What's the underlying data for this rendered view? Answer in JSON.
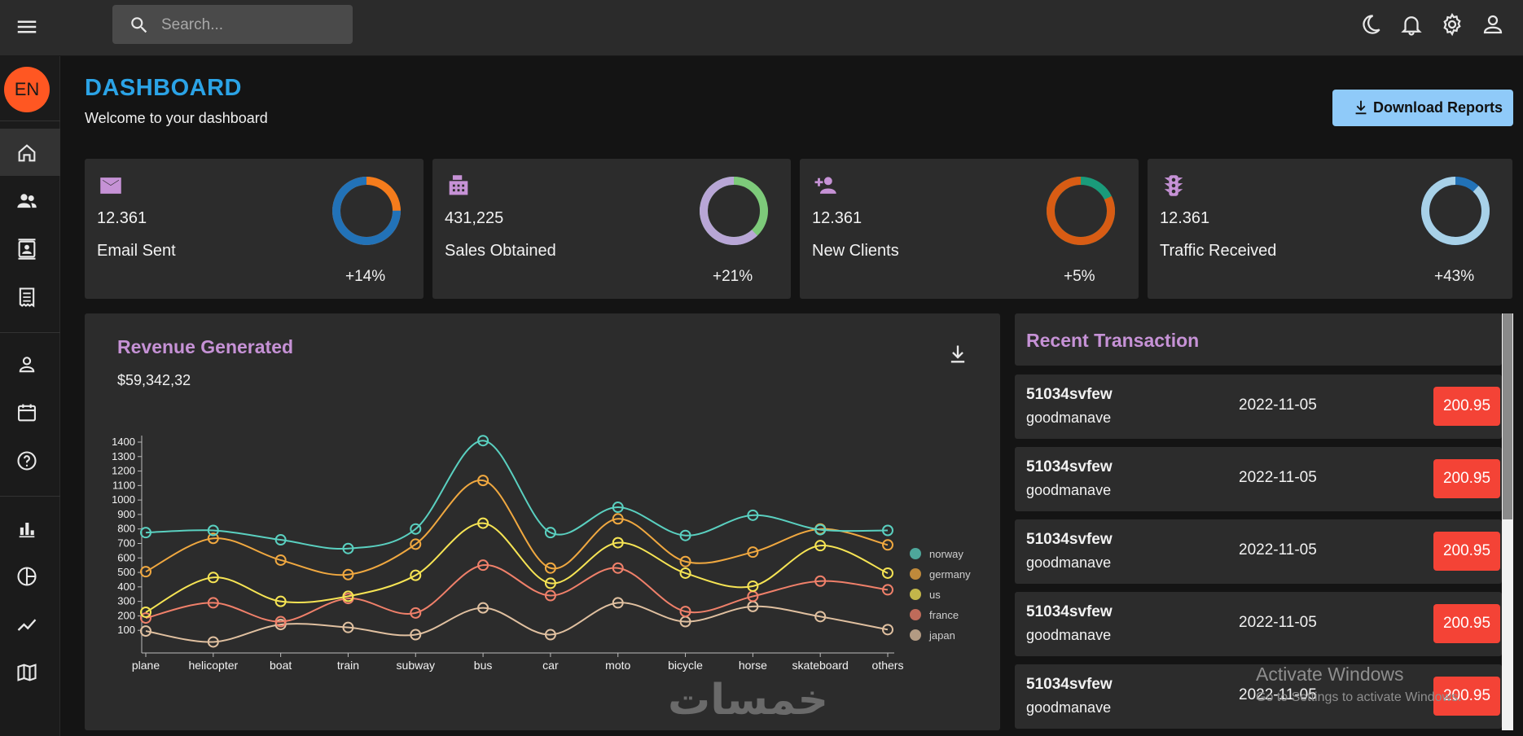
{
  "search": {
    "placeholder": "Search..."
  },
  "sidebar": {
    "lang_badge": "EN"
  },
  "header": {
    "title": "DASHBOARD",
    "subtitle": "Welcome to your dashboard",
    "download_label": "Download Reports"
  },
  "stats": [
    {
      "value": "12.361",
      "label": "Email Sent",
      "pct": "+14%",
      "progress": 0.75,
      "ring_main": "#2272b7",
      "ring_accent": "#f57c1c"
    },
    {
      "value": "431,225",
      "label": "Sales Obtained",
      "pct": "+21%",
      "progress": 0.62,
      "ring_main": "#b8a6d6",
      "ring_accent": "#7dca7a"
    },
    {
      "value": "12.361",
      "label": "New Clients",
      "pct": "+5%",
      "progress": 0.82,
      "ring_main": "#d85c14",
      "ring_accent": "#1a9b7a"
    },
    {
      "value": "12.361",
      "label": "Traffic Received",
      "pct": "+43%",
      "progress": 0.88,
      "ring_main": "#a8d1e8",
      "ring_accent": "#2272b7"
    }
  ],
  "revenue": {
    "title": "Revenue Generated",
    "amount": "$59,342,32"
  },
  "chart_data": {
    "type": "line",
    "title": "Revenue Generated",
    "categories": [
      "plane",
      "helicopter",
      "boat",
      "train",
      "subway",
      "bus",
      "car",
      "moto",
      "bicycle",
      "horse",
      "skateboard",
      "others"
    ],
    "ylim": [
      0,
      1400
    ],
    "yticks": [
      "100",
      "200",
      "300",
      "400",
      "500",
      "600",
      "700",
      "800",
      "900",
      "1000",
      "1100",
      "1200",
      "1300",
      "1400"
    ],
    "series": [
      {
        "name": "norway",
        "color": "#5ad0c0",
        "values": [
          775,
          790,
          725,
          665,
          800,
          1410,
          775,
          950,
          755,
          895,
          795,
          790
        ]
      },
      {
        "name": "germany",
        "color": "#f0a840",
        "values": [
          505,
          735,
          585,
          485,
          695,
          1135,
          530,
          870,
          575,
          640,
          800,
          690
        ]
      },
      {
        "name": "us",
        "color": "#f6e454",
        "values": [
          225,
          465,
          300,
          335,
          480,
          840,
          425,
          705,
          495,
          405,
          685,
          495
        ]
      },
      {
        "name": "france",
        "color": "#f0806a",
        "values": [
          185,
          290,
          160,
          320,
          220,
          550,
          340,
          530,
          230,
          335,
          440,
          380
        ]
      },
      {
        "name": "japan",
        "color": "#e0c0a0",
        "values": [
          95,
          20,
          140,
          120,
          70,
          255,
          70,
          290,
          160,
          265,
          195,
          105
        ]
      }
    ],
    "legend_position": "right"
  },
  "transactions": {
    "title": "Recent Transaction",
    "items": [
      {
        "id": "51034svfew",
        "user": "goodmanave",
        "date": "2022-11-05",
        "amount": "200.95"
      },
      {
        "id": "51034svfew",
        "user": "goodmanave",
        "date": "2022-11-05",
        "amount": "200.95"
      },
      {
        "id": "51034svfew",
        "user": "goodmanave",
        "date": "2022-11-05",
        "amount": "200.95"
      },
      {
        "id": "51034svfew",
        "user": "goodmanave",
        "date": "2022-11-05",
        "amount": "200.95"
      },
      {
        "id": "51034svfew",
        "user": "goodmanave",
        "date": "2022-11-05",
        "amount": "200.95"
      }
    ]
  },
  "watermark": {
    "title": "Activate Windows",
    "subtitle": "Go to Settings to activate Windows."
  },
  "overlay_logo": "خمسات",
  "icons": [
    "menu-icon",
    "search-icon",
    "moon-icon",
    "bell-icon",
    "gear-icon",
    "person-icon",
    "home-icon",
    "people-icon",
    "contacts-icon",
    "receipt-icon",
    "person-outline-icon",
    "calendar-icon",
    "help-icon",
    "bar-chart-icon",
    "pie-chart-icon",
    "line-chart-icon",
    "map-icon",
    "mail-icon",
    "fax-icon",
    "person-add-icon",
    "traffic-icon",
    "download-icon"
  ]
}
